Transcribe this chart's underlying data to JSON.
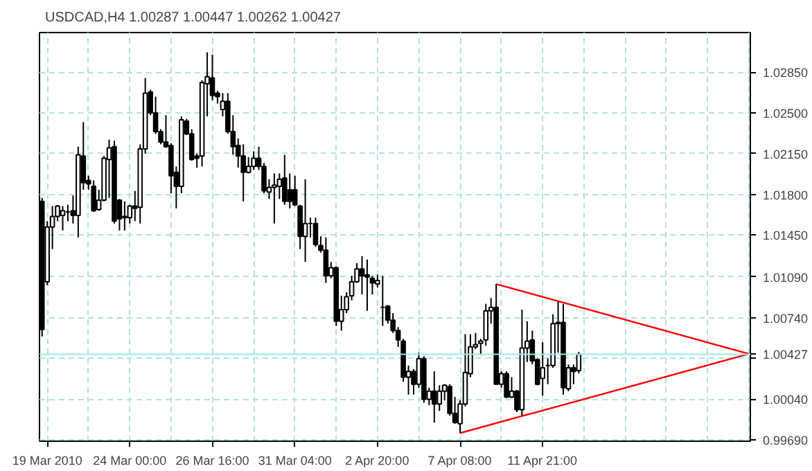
{
  "chart_data": {
    "type": "candlestick",
    "title": "USDCAD,H4  1.00287 1.00447 1.00262 1.00427",
    "color": "#000000",
    "categories": [
      null,
      "19 Mar 2010",
      null,
      null,
      null,
      null,
      null,
      null,
      null,
      null,
      null,
      null,
      null,
      null,
      null,
      null,
      null,
      "24 Mar 00:00",
      null,
      null,
      null,
      null,
      null,
      null,
      null,
      null,
      null,
      null,
      null,
      null,
      null,
      null,
      null,
      "26 Mar 16:00",
      null,
      null,
      null,
      null,
      null,
      null,
      null,
      null,
      null,
      null,
      null,
      null,
      null,
      null,
      null,
      "31 Mar 04:00",
      null,
      null,
      null,
      null,
      null,
      null,
      null,
      null,
      null,
      null,
      null,
      null,
      null,
      null,
      null,
      "2 Apr 20:00",
      null,
      null,
      null,
      null,
      null,
      null,
      null,
      null,
      null,
      null,
      null,
      null,
      null,
      null,
      null,
      "7 Apr 08:00",
      null,
      null,
      null,
      null,
      null,
      null,
      null,
      null,
      null,
      null,
      null,
      null,
      null,
      null,
      null,
      "11 Apr 21:00",
      null,
      null,
      null,
      null,
      null,
      null,
      null,
      null,
      null,
      null,
      null,
      null,
      null,
      null,
      null,
      null,
      null,
      null,
      null,
      null,
      null,
      null,
      null,
      null,
      null,
      null,
      null,
      null,
      null,
      null,
      null,
      null,
      null,
      null,
      null,
      null,
      null,
      null,
      null,
      null
    ],
    "ohlc": [
      [
        1.0174,
        1.0177,
        1.0058,
        1.0064
      ],
      [
        1.0105,
        1.0157,
        1.0102,
        1.0152
      ],
      [
        1.0152,
        1.017,
        1.0133,
        1.0161
      ],
      [
        1.0161,
        1.0171,
        1.0157,
        1.017
      ],
      [
        1.0162,
        1.017,
        1.0149,
        1.0166
      ],
      [
        1.0165,
        1.0171,
        1.0157,
        1.0165
      ],
      [
        1.0166,
        1.0179,
        1.0155,
        1.0162
      ],
      [
        1.0162,
        1.0221,
        1.0143,
        1.0214
      ],
      [
        1.0213,
        1.0242,
        1.0184,
        1.019
      ],
      [
        1.0192,
        1.0196,
        1.0184,
        1.0189
      ],
      [
        1.0187,
        1.0192,
        1.0165,
        1.0166
      ],
      [
        1.0167,
        1.0184,
        1.0166,
        1.0175
      ],
      [
        1.0175,
        1.0213,
        1.0174,
        1.0211
      ],
      [
        1.021,
        1.0227,
        1.0177,
        1.022
      ],
      [
        1.0221,
        1.0226,
        1.0155,
        1.0157
      ],
      [
        1.0175,
        1.0176,
        1.0149,
        1.0159
      ],
      [
        1.0161,
        1.0174,
        1.0149,
        1.016
      ],
      [
        1.016,
        1.0171,
        1.0155,
        1.017
      ],
      [
        1.017,
        1.0183,
        1.0157,
        1.0168
      ],
      [
        1.0169,
        1.0223,
        1.0155,
        1.0219
      ],
      [
        1.0219,
        1.028,
        1.0215,
        1.0267
      ],
      [
        1.0268,
        1.027,
        1.0248,
        1.025
      ],
      [
        1.025,
        1.0264,
        1.0232,
        1.0234
      ],
      [
        1.0234,
        1.0236,
        1.0223,
        1.0225
      ],
      [
        1.0225,
        1.0248,
        1.022,
        1.0221
      ],
      [
        1.0222,
        1.0224,
        1.0181,
        1.0196
      ],
      [
        1.0199,
        1.0204,
        1.0168,
        1.0187
      ],
      [
        1.0187,
        1.0247,
        1.0181,
        1.0244
      ],
      [
        1.0243,
        1.0245,
        1.0231,
        1.0232
      ],
      [
        1.0232,
        1.0236,
        1.0209,
        1.021
      ],
      [
        1.0213,
        1.0215,
        1.0203,
        1.0211
      ],
      [
        1.0213,
        1.0278,
        1.0204,
        1.0276
      ],
      [
        1.0275,
        1.0302,
        1.0247,
        1.0281
      ],
      [
        1.028,
        1.03,
        1.0261,
        1.0265
      ],
      [
        1.0267,
        1.0269,
        1.0258,
        1.0264
      ],
      [
        1.0253,
        1.0267,
        1.0247,
        1.026
      ],
      [
        1.026,
        1.0267,
        1.0232,
        1.0234
      ],
      [
        1.0234,
        1.0248,
        1.0214,
        1.0221
      ],
      [
        1.0222,
        1.0228,
        1.0203,
        1.0213
      ],
      [
        1.0213,
        1.0223,
        1.0174,
        1.0199
      ],
      [
        1.0199,
        1.0212,
        1.0198,
        1.0204
      ],
      [
        1.0204,
        1.0217,
        1.0201,
        1.0211
      ],
      [
        1.0211,
        1.0221,
        1.0201,
        1.0204
      ],
      [
        1.0204,
        1.0207,
        1.0181,
        1.0183
      ],
      [
        1.0182,
        1.0193,
        1.0176,
        1.0186
      ],
      [
        1.0186,
        1.0198,
        1.0155,
        1.0188
      ],
      [
        1.0187,
        1.0198,
        1.0176,
        1.0193
      ],
      [
        1.0194,
        1.0214,
        1.0171,
        1.0174
      ],
      [
        1.0184,
        1.0198,
        1.0168,
        1.0174
      ],
      [
        1.0184,
        1.0196,
        1.017,
        1.0171
      ],
      [
        1.017,
        1.0171,
        1.0133,
        1.0144
      ],
      [
        1.0144,
        1.0193,
        1.0122,
        1.0155
      ],
      [
        1.0155,
        1.016,
        1.0143,
        1.0155
      ],
      [
        1.0155,
        1.016,
        1.0135,
        1.0137
      ],
      [
        1.0136,
        1.0144,
        1.013,
        1.0132
      ],
      [
        1.0132,
        1.0143,
        1.0104,
        1.011
      ],
      [
        1.011,
        1.0122,
        1.0108,
        1.0117
      ],
      [
        1.0117,
        1.0118,
        1.0067,
        1.0071
      ],
      [
        1.0071,
        1.0093,
        1.0063,
        1.0081
      ],
      [
        1.0081,
        1.0096,
        1.0078,
        1.0092
      ],
      [
        1.0093,
        1.011,
        1.0089,
        1.0105
      ],
      [
        1.0105,
        1.0121,
        1.0104,
        1.0116
      ],
      [
        1.0116,
        1.0127,
        1.0094,
        1.011
      ],
      [
        1.0111,
        1.0124,
        1.008,
        1.0109
      ],
      [
        1.0108,
        1.011,
        1.0094,
        1.0104
      ],
      [
        1.0103,
        1.0111,
        1.01,
        1.0106
      ],
      [
        1.0083,
        1.011,
        1.0067,
        1.0083
      ],
      [
        1.0084,
        1.0085,
        1.0069,
        1.0072
      ],
      [
        1.0072,
        1.0078,
        1.0061,
        1.0063
      ],
      [
        1.0063,
        1.0066,
        1.0049,
        1.0055
      ],
      [
        1.0054,
        1.0056,
        1.0019,
        1.0023
      ],
      [
        1.0023,
        1.0033,
        1.0008,
        1.0028
      ],
      [
        1.0028,
        1.003,
        1.0008,
        1.0017
      ],
      [
        1.0017,
        1.0044,
        1.0014,
        1.0039
      ],
      [
        1.0039,
        1.0041,
        1.0001,
        1.0004
      ],
      [
        1.0004,
        1.0014,
        0.9999,
        1.0011
      ],
      [
        1.0011,
        1.0028,
        0.9984,
        1.0
      ],
      [
        1.0,
        1.0016,
        0.9994,
        1.0011
      ],
      [
        1.0011,
        1.0017,
        1.0003,
        1.0016
      ],
      [
        1.0015,
        1.0017,
        0.999,
        0.9992
      ],
      [
        0.9992,
        1.0006,
        0.9983,
        0.9984
      ],
      [
        0.9983,
        1.0003,
        0.9975,
        1.0
      ],
      [
        1.0,
        1.006,
        0.9998,
        1.0027
      ],
      [
        1.0026,
        1.006,
        1.0023,
        1.0049
      ],
      [
        1.0049,
        1.0061,
        1.0047,
        1.0051
      ],
      [
        1.0052,
        1.0056,
        1.0042,
        1.0054
      ],
      [
        1.0055,
        1.0086,
        1.005,
        1.008
      ],
      [
        1.008,
        1.0091,
        1.0069,
        1.0083
      ],
      [
        1.0083,
        1.0103,
        1.0017,
        1.0017
      ],
      [
        1.0017,
        1.0028,
        1.0014,
        1.0026
      ],
      [
        1.0026,
        1.0028,
        1.0005,
        1.0006
      ],
      [
        1.0006,
        1.0023,
        1.0005,
        1.0011
      ],
      [
        1.0011,
        1.0012,
        0.9993,
        0.9995
      ],
      [
        0.9995,
        1.0081,
        0.999,
        1.0048
      ],
      [
        1.0048,
        1.0071,
        1.0036,
        1.0054
      ],
      [
        1.0055,
        1.0063,
        1.0034,
        1.0037
      ],
      [
        1.0038,
        1.0039,
        1.0016,
        1.0017
      ],
      [
        1.0022,
        1.0053,
        1.0007,
        1.0031
      ],
      [
        1.0033,
        1.0039,
        1.0017,
        1.0033
      ],
      [
        1.0033,
        1.0077,
        1.0031,
        1.0069
      ],
      [
        1.0069,
        1.0088,
        1.0044,
        1.007
      ],
      [
        1.007,
        1.0086,
        1.0008,
        1.0014
      ],
      [
        1.0013,
        1.0034,
        1.0011,
        1.0031
      ],
      [
        1.0031,
        1.0034,
        1.0017,
        1.0028
      ],
      [
        1.00287,
        1.00447,
        1.00262,
        1.00427
      ],
      null,
      null,
      null,
      null,
      null,
      null,
      null,
      null,
      null,
      null,
      null,
      null,
      null,
      null,
      null,
      null,
      null,
      null,
      null,
      null,
      null,
      null,
      null,
      null,
      null,
      null,
      null,
      null,
      null,
      null,
      null,
      null,
      null
    ],
    "series": [
      {
        "type": "line",
        "color": "#ff0000",
        "values": [
          null,
          null,
          null,
          null,
          null,
          null,
          null,
          null,
          null,
          null,
          null,
          null,
          null,
          null,
          null,
          null,
          null,
          null,
          null,
          null,
          null,
          null,
          null,
          null,
          null,
          null,
          null,
          null,
          null,
          null,
          null,
          null,
          null,
          null,
          null,
          null,
          null,
          null,
          null,
          null,
          null,
          null,
          null,
          null,
          null,
          null,
          null,
          null,
          null,
          null,
          null,
          null,
          null,
          null,
          null,
          null,
          null,
          null,
          null,
          null,
          null,
          null,
          null,
          null,
          null,
          null,
          null,
          null,
          null,
          null,
          null,
          null,
          null,
          null,
          null,
          null,
          null,
          null,
          null,
          null,
          null,
          null,
          null,
          null,
          null,
          null,
          null,
          null,
          1.0103,
          null,
          null,
          null,
          null,
          null,
          null,
          null,
          null,
          null,
          null,
          null,
          null,
          null,
          null,
          null,
          null,
          null,
          null,
          null,
          null,
          null,
          null,
          null,
          null,
          null,
          null,
          null,
          null,
          null,
          null,
          null,
          null,
          null,
          null,
          null,
          null,
          null,
          null,
          null,
          null,
          null,
          null,
          null,
          null,
          null,
          null,
          null,
          null,
          1.0043
        ]
      },
      {
        "type": "line",
        "color": "#ff0000",
        "values": [
          null,
          null,
          null,
          null,
          null,
          null,
          null,
          null,
          null,
          null,
          null,
          null,
          null,
          null,
          null,
          null,
          null,
          null,
          null,
          null,
          null,
          null,
          null,
          null,
          null,
          null,
          null,
          null,
          null,
          null,
          null,
          null,
          null,
          null,
          null,
          null,
          null,
          null,
          null,
          null,
          null,
          null,
          null,
          null,
          null,
          null,
          null,
          null,
          null,
          null,
          null,
          null,
          null,
          null,
          null,
          null,
          null,
          null,
          null,
          null,
          null,
          null,
          null,
          null,
          null,
          null,
          null,
          null,
          null,
          null,
          null,
          null,
          null,
          null,
          null,
          null,
          null,
          null,
          null,
          null,
          null,
          0.9975,
          null,
          null,
          null,
          null,
          null,
          null,
          null,
          null,
          null,
          null,
          null,
          null,
          null,
          null,
          null,
          null,
          null,
          null,
          null,
          null,
          null,
          null,
          null,
          null,
          null,
          null,
          null,
          null,
          null,
          null,
          null,
          null,
          null,
          null,
          null,
          null,
          null,
          null,
          null,
          null,
          null,
          null,
          null,
          null,
          null,
          null,
          null,
          null,
          null,
          null,
          null,
          null,
          null,
          null,
          null,
          1.0043
        ]
      }
    ],
    "ylim": [
      0.9968,
      1.0319
    ],
    "yticks": [
      {
        "value": 0.9969,
        "label": "0.99690"
      },
      {
        "value": 1.0004,
        "label": "1.00040"
      },
      {
        "value": 1.0039,
        "label": null
      },
      {
        "value": 1.0074,
        "label": "1.00740"
      },
      {
        "value": 1.0109,
        "label": "1.01090"
      },
      {
        "value": 1.0145,
        "label": "1.01450"
      },
      {
        "value": 1.018,
        "label": "1.01800"
      },
      {
        "value": 1.0215,
        "label": "1.02150"
      },
      {
        "value": 1.025,
        "label": "1.02500"
      },
      {
        "value": 1.0285,
        "label": "1.02850"
      }
    ],
    "ref_lines": [
      {
        "axis": "y",
        "value": 1.00427,
        "label": "1.00427",
        "color": "#a0e8e8"
      }
    ],
    "grid": true
  }
}
